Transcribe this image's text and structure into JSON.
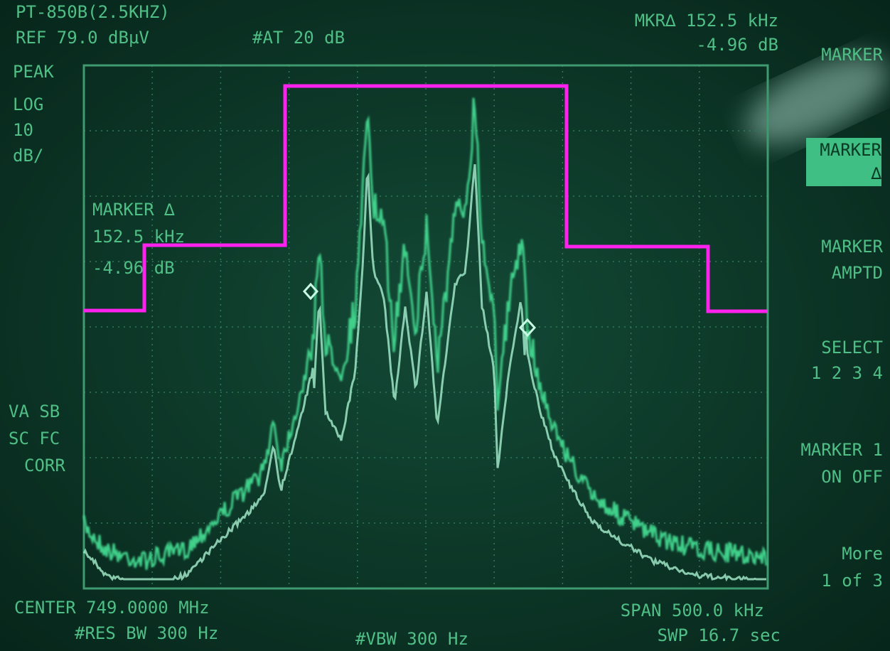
{
  "header": {
    "title": "PT-850B(2.5KHZ)",
    "ref": "REF 79.0 dBµV",
    "atten": "#AT 20 dB",
    "marker_readout": [
      "MKR∆ 152.5 kHz",
      "-4.96 dB"
    ]
  },
  "left_annotations": {
    "scale": [
      "PEAK",
      "LOG",
      "10",
      "dB/"
    ],
    "marker": [
      "MARKER ∆",
      "152.5 kHz",
      "-4.96 dB"
    ],
    "correction": [
      "VA SB",
      "SC FC",
      "CORR"
    ]
  },
  "footer": {
    "center": "CENTER 749.0000 MHz",
    "res_bw": "#RES BW 300 Hz",
    "vbw": "#VBW 300 Hz",
    "span": "SPAN 500.0 kHz",
    "sweep": "SWP 16.7 sec"
  },
  "softkeys": [
    [
      "MARKER"
    ],
    [
      "MARKER",
      "∆"
    ],
    [
      "MARKER",
      "AMPTD"
    ],
    [
      "SELECT",
      "1 2 3 4"
    ],
    [
      "MARKER 1",
      "ON OFF"
    ],
    [
      "More",
      "1 of 3"
    ]
  ]
}
